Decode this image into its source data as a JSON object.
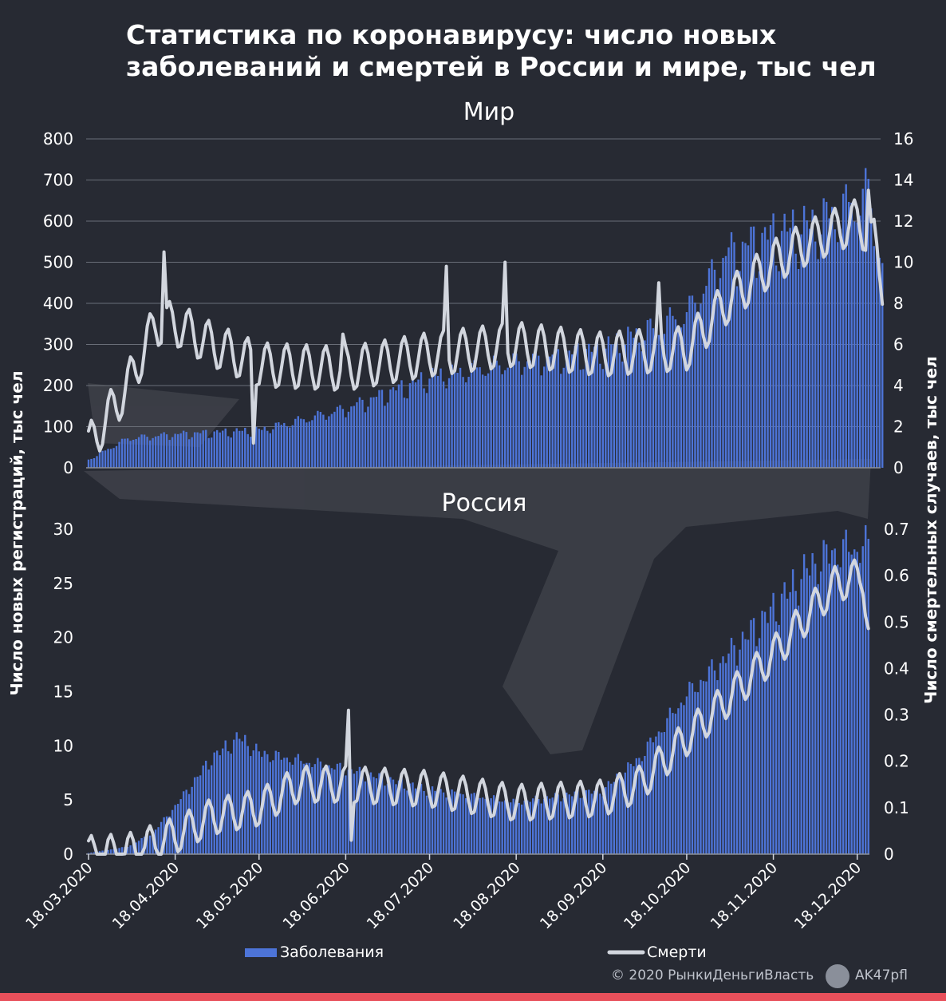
{
  "title": "Статистика по коронавирусу: число новых заболеваний и смертей в России и мире, тыс чел",
  "credits": {
    "copyright": "© 2020  РынкиДеньгиВласть",
    "telegram": "AK47pfl",
    "telegram_icon": "telegram-icon"
  },
  "colors": {
    "background": "#272a33",
    "bars": "#4d74d8",
    "line": "#d2d6de",
    "grid": "#6a6e78",
    "text": "#ffffff",
    "strip": "#e8505b"
  },
  "chart_data": [
    {
      "type": "bar+line",
      "title": "Мир",
      "ylabel_left": "Число новых регистраций, тыс чел",
      "ylabel_right": "Число смертельных случаев, тыс чел",
      "x_start": "18.03.2020",
      "x_end": "27.12.2020",
      "x_step": "1 день",
      "ylim_left": [
        0,
        800
      ],
      "ylim_right": [
        0,
        16
      ],
      "yticks_left": [
        "0",
        "100",
        "200",
        "300",
        "400",
        "500",
        "600",
        "700",
        "800"
      ],
      "yticks_right": [
        "0",
        "2",
        "4",
        "6",
        "8",
        "10",
        "12",
        "14",
        "16"
      ],
      "grid": true,
      "series": [
        {
          "name": "Заболевания",
          "axis": "left",
          "style": "bars",
          "knots": [
            [
              "18.03.2020",
              20
            ],
            [
              "01.04.2020",
              75
            ],
            [
              "18.04.2020",
              85
            ],
            [
              "18.05.2020",
              95
            ],
            [
              "18.06.2020",
              150
            ],
            [
              "18.07.2020",
              230
            ],
            [
              "18.08.2020",
              270
            ],
            [
              "18.09.2020",
              300
            ],
            [
              "18.10.2020",
              390
            ],
            [
              "01.11.2020",
              540
            ],
            [
              "18.11.2020",
              590
            ],
            [
              "01.12.2020",
              610
            ],
            [
              "14.12.2020",
              660
            ],
            [
              "22.12.2020",
              700
            ],
            [
              "27.12.2020",
              520
            ]
          ],
          "weekly_dip": 0.15
        },
        {
          "name": "Смерти",
          "axis": "right",
          "style": "line",
          "knots": [
            [
              "18.03.2020",
              1
            ],
            [
              "01.04.2020",
              4
            ],
            [
              "11.04.2020",
              7
            ],
            [
              "18.04.2020",
              7
            ],
            [
              "01.05.2020",
              6
            ],
            [
              "18.05.2020",
              5
            ],
            [
              "18.06.2020",
              4.8
            ],
            [
              "18.07.2020",
              5.5
            ],
            [
              "18.08.2020",
              6
            ],
            [
              "18.09.2020",
              5.5
            ],
            [
              "18.10.2020",
              5.8
            ],
            [
              "01.11.2020",
              8
            ],
            [
              "18.11.2020",
              10
            ],
            [
              "01.12.2020",
              11
            ],
            [
              "18.12.2020",
              12
            ],
            [
              "24.12.2020",
              11
            ],
            [
              "27.12.2020",
              9
            ]
          ],
          "weekly_swing": 1.1,
          "spikes": [
            [
              "14.04.2020",
              10.5
            ],
            [
              "17.06.2020",
              6.5
            ],
            [
              "24.07.2020",
              9.8
            ],
            [
              "14.08.2020",
              10
            ],
            [
              "08.10.2020",
              9
            ],
            [
              "22.12.2020",
              13.5
            ]
          ],
          "dips": [
            [
              "16.05.2020",
              1.2
            ]
          ]
        }
      ]
    },
    {
      "type": "bar+line",
      "title": "Россия",
      "ylabel_left": "Число новых регистраций, тыс чел",
      "ylabel_right": "Число смертельных случаев, тыс чел",
      "x_start": "18.03.2020",
      "x_end": "22.12.2020",
      "x_step": "1 день",
      "ylim_left": [
        0,
        30
      ],
      "ylim_right": [
        0,
        0.7
      ],
      "yticks_left": [
        "0",
        "5",
        "10",
        "15",
        "20",
        "25",
        "30"
      ],
      "yticks_right": [
        "0",
        "0.1",
        "0.2",
        "0.3",
        "0.4",
        "0.5",
        "0.6",
        "0.7"
      ],
      "xticks": [
        "18.03.2020",
        "18.04.2020",
        "18.05.2020",
        "18.06.2020",
        "18.07.2020",
        "18.08.2020",
        "18.09.2020",
        "18.10.2020",
        "18.11.2020",
        "18.12.2020"
      ],
      "grid": false,
      "series": [
        {
          "name": "Заболевания",
          "axis": "left",
          "style": "bars",
          "knots": [
            [
              "18.03.2020",
              0.1
            ],
            [
              "01.04.2020",
              0.7
            ],
            [
              "10.04.2020",
              2
            ],
            [
              "18.04.2020",
              4.5
            ],
            [
              "01.05.2020",
              9
            ],
            [
              "11.05.2020",
              11
            ],
            [
              "18.05.2020",
              9.5
            ],
            [
              "18.06.2020",
              8
            ],
            [
              "18.07.2020",
              6
            ],
            [
              "18.08.2020",
              4.9
            ],
            [
              "18.09.2020",
              6
            ],
            [
              "01.10.2020",
              9
            ],
            [
              "18.10.2020",
              15
            ],
            [
              "01.11.2020",
              18.5
            ],
            [
              "18.11.2020",
              23
            ],
            [
              "01.12.2020",
              27
            ],
            [
              "10.12.2020",
              28.5
            ],
            [
              "22.12.2020",
              29
            ]
          ],
          "weekly_dip": 0.06
        },
        {
          "name": "Смерти",
          "axis": "right",
          "style": "line",
          "knots": [
            [
              "18.03.2020",
              0
            ],
            [
              "01.04.2020",
              0.005
            ],
            [
              "18.04.2020",
              0.04
            ],
            [
              "01.05.2020",
              0.08
            ],
            [
              "18.05.2020",
              0.1
            ],
            [
              "01.06.2020",
              0.15
            ],
            [
              "18.06.2020",
              0.15
            ],
            [
              "18.07.2020",
              0.14
            ],
            [
              "18.08.2020",
              0.11
            ],
            [
              "18.09.2020",
              0.12
            ],
            [
              "01.10.2020",
              0.15
            ],
            [
              "18.10.2020",
              0.25
            ],
            [
              "01.11.2020",
              0.33
            ],
            [
              "18.11.2020",
              0.43
            ],
            [
              "01.12.2020",
              0.52
            ],
            [
              "10.12.2020",
              0.58
            ],
            [
              "20.12.2020",
              0.6
            ],
            [
              "22.12.2020",
              0.49
            ]
          ],
          "weekly_swing": 0.04,
          "spikes": [
            [
              "19.06.2020",
              0.31
            ]
          ],
          "dips": [
            [
              "20.06.2020",
              0.03
            ]
          ]
        }
      ]
    }
  ],
  "legend": [
    {
      "label": "Заболевания",
      "kind": "bar"
    },
    {
      "label": "Смерти",
      "kind": "line"
    }
  ]
}
